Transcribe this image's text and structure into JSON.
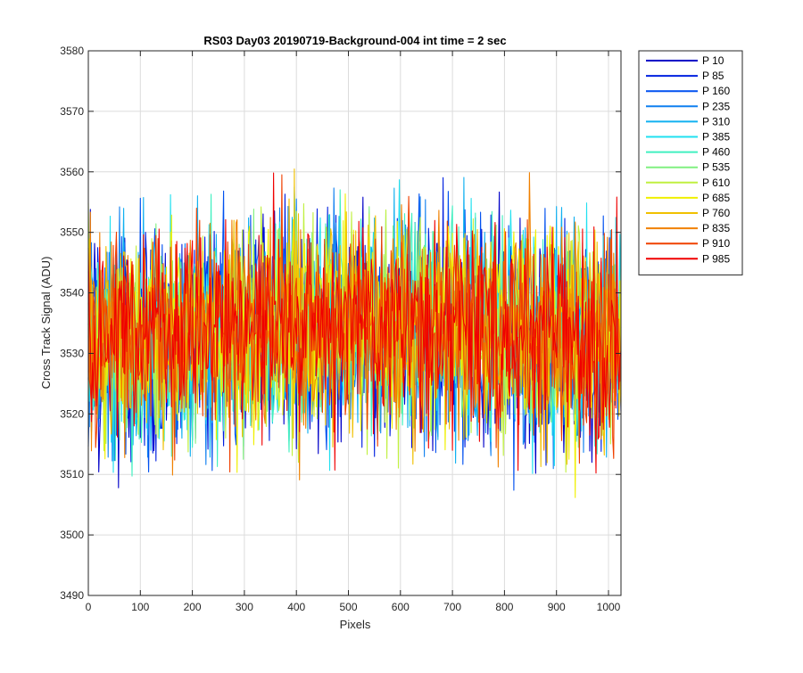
{
  "chart_data": {
    "type": "line",
    "title": "RS03 Day03 20190719-Background-004 int time = 2 sec",
    "xlabel": "Pixels",
    "ylabel": "Cross Track Signal (ADU)",
    "xlim": [
      0,
      1024
    ],
    "ylim": [
      3490,
      3580
    ],
    "xticks": [
      "0",
      "100",
      "200",
      "300",
      "400",
      "500",
      "600",
      "700",
      "800",
      "900",
      "1000"
    ],
    "yticks": [
      "3490",
      "3500",
      "3510",
      "3520",
      "3530",
      "3540",
      "3550",
      "3560",
      "3570",
      "3580"
    ],
    "grid": true,
    "legend_position": "outside-right",
    "signal_mean": 3532,
    "noise_envelope": [
      3503,
      3562
    ],
    "series": [
      {
        "name": "P 10",
        "color": "#0000c8"
      },
      {
        "name": "P 85",
        "color": "#0020e0"
      },
      {
        "name": "P 160",
        "color": "#0050f0"
      },
      {
        "name": "P 235",
        "color": "#1080f0"
      },
      {
        "name": "P 310",
        "color": "#10b0f0"
      },
      {
        "name": "P 385",
        "color": "#20e0f0"
      },
      {
        "name": "P 460",
        "color": "#40f0c0"
      },
      {
        "name": "P 535",
        "color": "#80f080"
      },
      {
        "name": "P 610",
        "color": "#c0f040"
      },
      {
        "name": "P 685",
        "color": "#f0f000"
      },
      {
        "name": "P 760",
        "color": "#f0c000"
      },
      {
        "name": "P 835",
        "color": "#f08000"
      },
      {
        "name": "P 910",
        "color": "#f04000"
      },
      {
        "name": "P 985",
        "color": "#f00000"
      }
    ]
  }
}
